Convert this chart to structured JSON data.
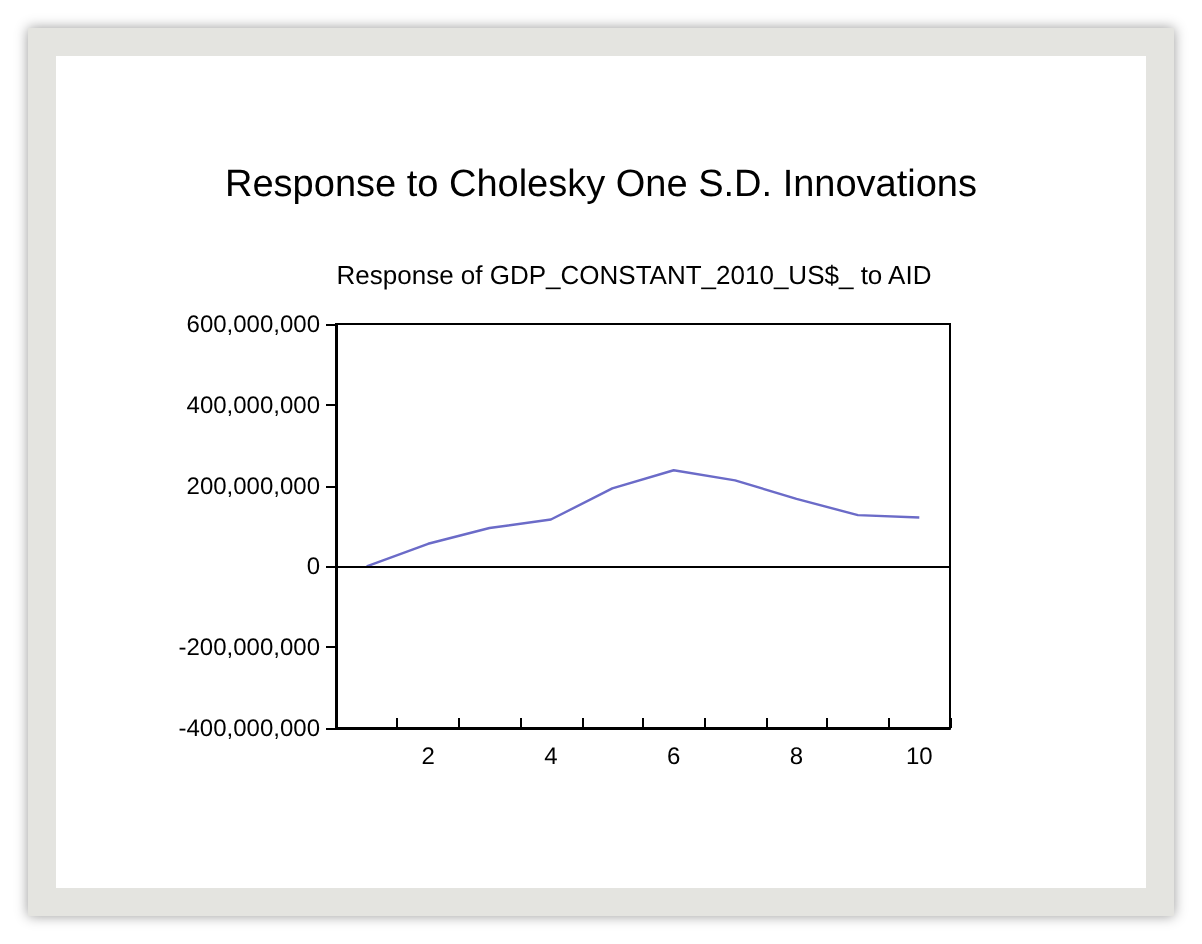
{
  "chart_data": {
    "type": "line",
    "title": "Response to Cholesky One S.D. Innovations",
    "subtitle": "Response of GDP_CONSTANT_2010_US$_ to AID",
    "categories": [
      null,
      "2",
      null,
      "4",
      null,
      "6",
      null,
      "8",
      null,
      "10"
    ],
    "series": [
      {
        "color": "#6b6bc8",
        "values": [
          0,
          56000000,
          95000000,
          116000000,
          193000000,
          238000000,
          213000000,
          167000000,
          127000000,
          121000000
        ]
      }
    ],
    "ylim": [
      -400000000,
      600000000
    ],
    "yticks": [
      {
        "value": -400000000,
        "label": "-400,000,000"
      },
      {
        "value": -200000000,
        "label": "-200,000,000"
      },
      0,
      {
        "value": 200000000,
        "label": "200,000,000"
      },
      {
        "value": 400000000,
        "label": "400,000,000"
      },
      {
        "value": 600000000,
        "label": "600,000,000"
      }
    ],
    "ref_lines": [
      {
        "axis": "y",
        "value": 0,
        "color": "#000000"
      }
    ],
    "grid": false,
    "marker": "none",
    "line_style": "solid"
  }
}
